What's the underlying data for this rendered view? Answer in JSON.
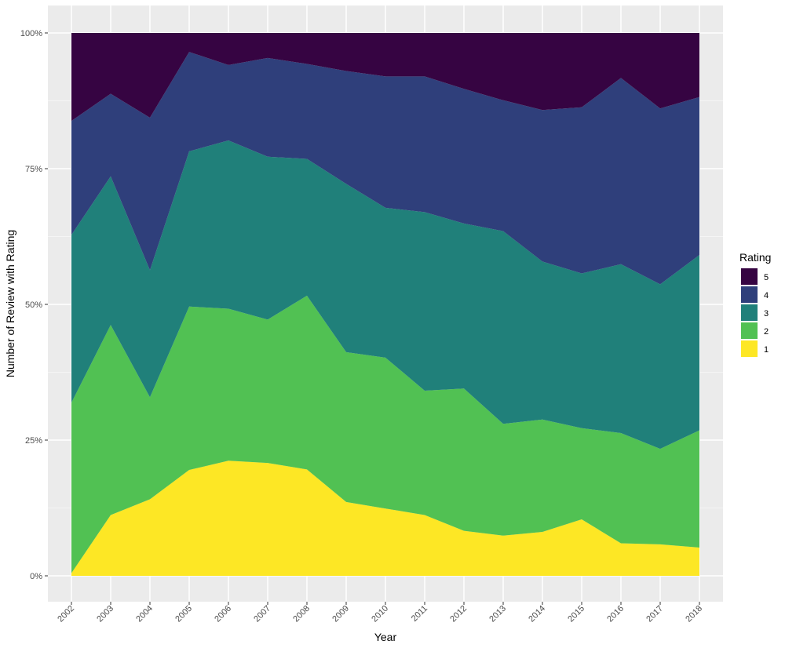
{
  "chart_data": {
    "type": "area",
    "stacking": "percent",
    "xlabel": "Year",
    "ylabel": "Number of Review with Rating",
    "ylim": [
      0,
      1
    ],
    "y_ticks": [
      {
        "value": 0,
        "label": "0%"
      },
      {
        "value": 0.25,
        "label": "25%"
      },
      {
        "value": 0.5,
        "label": "50%"
      },
      {
        "value": 0.75,
        "label": "75%"
      },
      {
        "value": 1,
        "label": "100%"
      }
    ],
    "x": [
      "2002",
      "2003",
      "2004",
      "2005",
      "2006",
      "2007",
      "2008",
      "2009",
      "2010",
      "2011",
      "2012",
      "2013",
      "2014",
      "2015",
      "2016",
      "2017",
      "2018"
    ],
    "grid": true,
    "legend": {
      "title": "Rating",
      "placement": "right"
    },
    "series": [
      {
        "name": "1",
        "color": "#FDE725",
        "values": [
          0.005,
          0.112,
          0.141,
          0.195,
          0.212,
          0.208,
          0.196,
          0.136,
          0.124,
          0.112,
          0.083,
          0.074,
          0.081,
          0.104,
          0.06,
          0.058,
          0.052
        ]
      },
      {
        "name": "2",
        "color": "#51C153",
        "values": [
          0.314,
          0.35,
          0.188,
          0.301,
          0.28,
          0.264,
          0.32,
          0.276,
          0.278,
          0.229,
          0.262,
          0.206,
          0.207,
          0.168,
          0.203,
          0.176,
          0.216
        ]
      },
      {
        "name": "3",
        "color": "#20807A",
        "values": [
          0.309,
          0.274,
          0.234,
          0.286,
          0.31,
          0.3,
          0.252,
          0.31,
          0.276,
          0.329,
          0.304,
          0.355,
          0.291,
          0.285,
          0.311,
          0.303,
          0.323
        ]
      },
      {
        "name": "4",
        "color": "#2F3F7B",
        "values": [
          0.21,
          0.152,
          0.281,
          0.183,
          0.139,
          0.182,
          0.175,
          0.208,
          0.242,
          0.25,
          0.248,
          0.241,
          0.279,
          0.306,
          0.343,
          0.324,
          0.291
        ]
      },
      {
        "name": "5",
        "color": "#360442",
        "values": [
          0.162,
          0.112,
          0.156,
          0.035,
          0.059,
          0.046,
          0.057,
          0.07,
          0.08,
          0.08,
          0.103,
          0.124,
          0.142,
          0.137,
          0.083,
          0.139,
          0.118
        ]
      }
    ]
  }
}
